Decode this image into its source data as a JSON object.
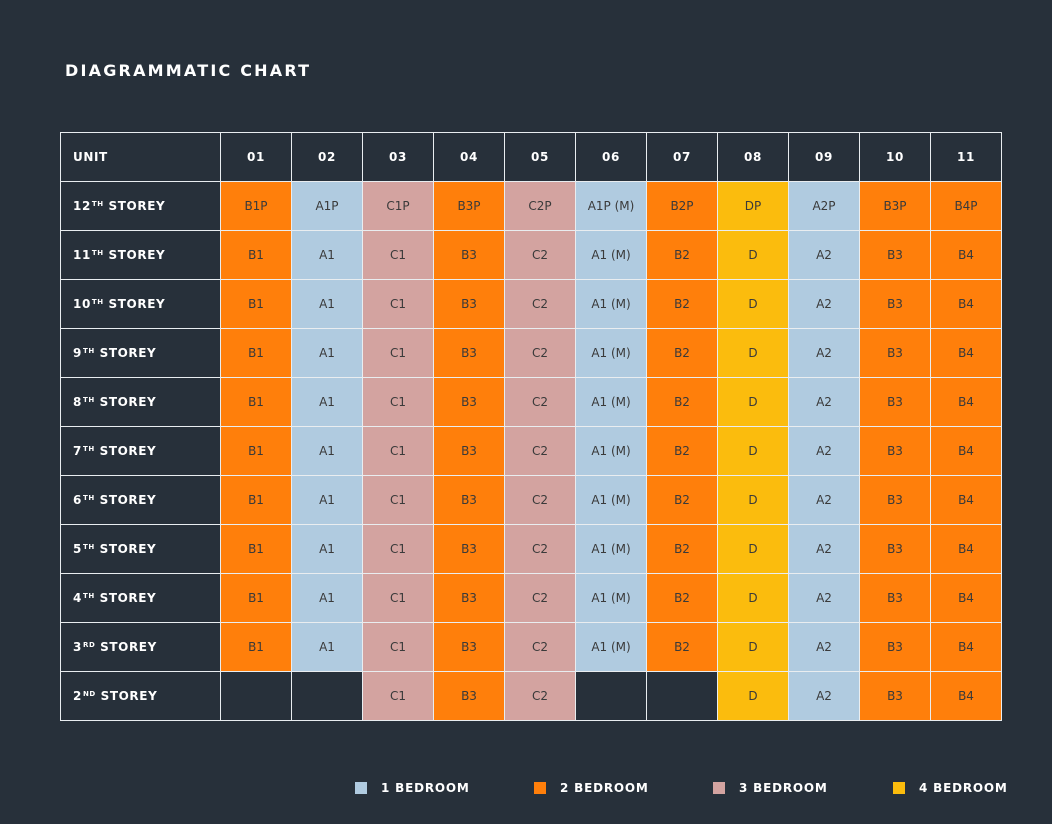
{
  "title": "DIAGRAMMATIC CHART",
  "header_label": "UNIT",
  "units": [
    "01",
    "02",
    "03",
    "04",
    "05",
    "06",
    "07",
    "08",
    "09",
    "10",
    "11"
  ],
  "rows": [
    {
      "num": "12",
      "ord": "TH",
      "suffix": "STOREY",
      "cells": [
        [
          "B1P",
          2
        ],
        [
          "A1P",
          1
        ],
        [
          "C1P",
          3
        ],
        [
          "B3P",
          2
        ],
        [
          "C2P",
          3
        ],
        [
          "A1P (M)",
          1
        ],
        [
          "B2P",
          2
        ],
        [
          "DP",
          4
        ],
        [
          "A2P",
          1
        ],
        [
          "B3P",
          2
        ],
        [
          "B4P",
          2
        ]
      ]
    },
    {
      "num": "11",
      "ord": "TH",
      "suffix": "STOREY",
      "cells": [
        [
          "B1",
          2
        ],
        [
          "A1",
          1
        ],
        [
          "C1",
          3
        ],
        [
          "B3",
          2
        ],
        [
          "C2",
          3
        ],
        [
          "A1 (M)",
          1
        ],
        [
          "B2",
          2
        ],
        [
          "D",
          4
        ],
        [
          "A2",
          1
        ],
        [
          "B3",
          2
        ],
        [
          "B4",
          2
        ]
      ]
    },
    {
      "num": "10",
      "ord": "TH",
      "suffix": "STOREY",
      "cells": [
        [
          "B1",
          2
        ],
        [
          "A1",
          1
        ],
        [
          "C1",
          3
        ],
        [
          "B3",
          2
        ],
        [
          "C2",
          3
        ],
        [
          "A1 (M)",
          1
        ],
        [
          "B2",
          2
        ],
        [
          "D",
          4
        ],
        [
          "A2",
          1
        ],
        [
          "B3",
          2
        ],
        [
          "B4",
          2
        ]
      ]
    },
    {
      "num": "9",
      "ord": "TH",
      "suffix": "STOREY",
      "cells": [
        [
          "B1",
          2
        ],
        [
          "A1",
          1
        ],
        [
          "C1",
          3
        ],
        [
          "B3",
          2
        ],
        [
          "C2",
          3
        ],
        [
          "A1 (M)",
          1
        ],
        [
          "B2",
          2
        ],
        [
          "D",
          4
        ],
        [
          "A2",
          1
        ],
        [
          "B3",
          2
        ],
        [
          "B4",
          2
        ]
      ]
    },
    {
      "num": "8",
      "ord": "TH",
      "suffix": "STOREY",
      "cells": [
        [
          "B1",
          2
        ],
        [
          "A1",
          1
        ],
        [
          "C1",
          3
        ],
        [
          "B3",
          2
        ],
        [
          "C2",
          3
        ],
        [
          "A1 (M)",
          1
        ],
        [
          "B2",
          2
        ],
        [
          "D",
          4
        ],
        [
          "A2",
          1
        ],
        [
          "B3",
          2
        ],
        [
          "B4",
          2
        ]
      ]
    },
    {
      "num": "7",
      "ord": "TH",
      "suffix": "STOREY",
      "cells": [
        [
          "B1",
          2
        ],
        [
          "A1",
          1
        ],
        [
          "C1",
          3
        ],
        [
          "B3",
          2
        ],
        [
          "C2",
          3
        ],
        [
          "A1 (M)",
          1
        ],
        [
          "B2",
          2
        ],
        [
          "D",
          4
        ],
        [
          "A2",
          1
        ],
        [
          "B3",
          2
        ],
        [
          "B4",
          2
        ]
      ]
    },
    {
      "num": "6",
      "ord": "TH",
      "suffix": "STOREY",
      "cells": [
        [
          "B1",
          2
        ],
        [
          "A1",
          1
        ],
        [
          "C1",
          3
        ],
        [
          "B3",
          2
        ],
        [
          "C2",
          3
        ],
        [
          "A1 (M)",
          1
        ],
        [
          "B2",
          2
        ],
        [
          "D",
          4
        ],
        [
          "A2",
          1
        ],
        [
          "B3",
          2
        ],
        [
          "B4",
          2
        ]
      ]
    },
    {
      "num": "5",
      "ord": "TH",
      "suffix": "STOREY",
      "cells": [
        [
          "B1",
          2
        ],
        [
          "A1",
          1
        ],
        [
          "C1",
          3
        ],
        [
          "B3",
          2
        ],
        [
          "C2",
          3
        ],
        [
          "A1 (M)",
          1
        ],
        [
          "B2",
          2
        ],
        [
          "D",
          4
        ],
        [
          "A2",
          1
        ],
        [
          "B3",
          2
        ],
        [
          "B4",
          2
        ]
      ]
    },
    {
      "num": "4",
      "ord": "TH",
      "suffix": "STOREY",
      "cells": [
        [
          "B1",
          2
        ],
        [
          "A1",
          1
        ],
        [
          "C1",
          3
        ],
        [
          "B3",
          2
        ],
        [
          "C2",
          3
        ],
        [
          "A1 (M)",
          1
        ],
        [
          "B2",
          2
        ],
        [
          "D",
          4
        ],
        [
          "A2",
          1
        ],
        [
          "B3",
          2
        ],
        [
          "B4",
          2
        ]
      ]
    },
    {
      "num": "3",
      "ord": "RD",
      "suffix": "STOREY",
      "cells": [
        [
          "B1",
          2
        ],
        [
          "A1",
          1
        ],
        [
          "C1",
          3
        ],
        [
          "B3",
          2
        ],
        [
          "C2",
          3
        ],
        [
          "A1 (M)",
          1
        ],
        [
          "B2",
          2
        ],
        [
          "D",
          4
        ],
        [
          "A2",
          1
        ],
        [
          "B3",
          2
        ],
        [
          "B4",
          2
        ]
      ]
    },
    {
      "num": "2",
      "ord": "ND",
      "suffix": "STOREY",
      "cells": [
        [
          "",
          0
        ],
        [
          "",
          0
        ],
        [
          "C1",
          3
        ],
        [
          "B3",
          2
        ],
        [
          "C2",
          3
        ],
        [
          "",
          0
        ],
        [
          "",
          0
        ],
        [
          "D",
          4
        ],
        [
          "A2",
          1
        ],
        [
          "B3",
          2
        ],
        [
          "B4",
          2
        ]
      ]
    }
  ],
  "legend": [
    {
      "label": "1 BEDROOM",
      "color": "#b0cbe0"
    },
    {
      "label": "2 BEDROOM",
      "color": "#ff7f0b"
    },
    {
      "label": "3 BEDROOM",
      "color": "#d3a3a0"
    },
    {
      "label": "4 BEDROOM",
      "color": "#fbbc0d"
    }
  ]
}
